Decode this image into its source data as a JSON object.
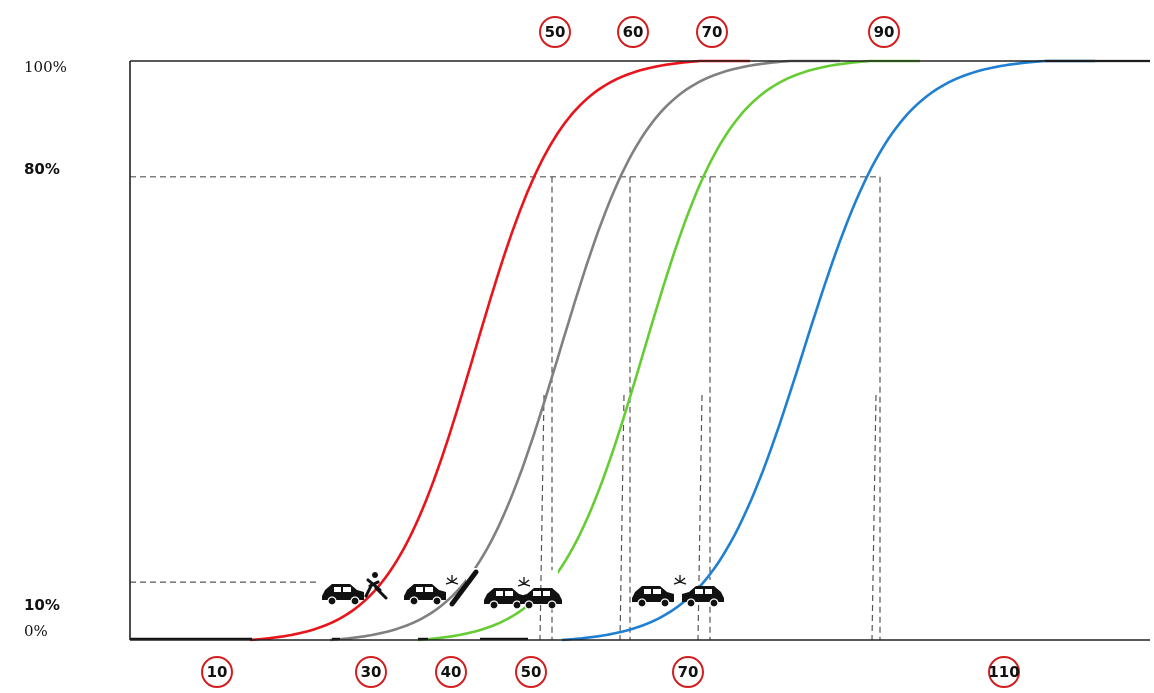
{
  "chart_data": {
    "type": "line",
    "title": "",
    "xlabel": "",
    "ylabel": "",
    "ylim": [
      0,
      100
    ],
    "y_tick_labels": [
      "100%",
      "80%",
      "10%",
      "0%"
    ],
    "top_sign_labels": [
      "50",
      "60",
      "70",
      "90"
    ],
    "bottom_sign_labels": [
      "10",
      "30",
      "40",
      "50",
      "70",
      "110"
    ],
    "series": [
      {
        "color": "#e8141b",
        "values": [
          0,
          2,
          10,
          50,
          80,
          98,
          100
        ]
      },
      {
        "color": "#808080",
        "values": [
          0,
          2,
          10,
          50,
          80,
          98,
          100
        ]
      },
      {
        "color": "#66cc33",
        "values": [
          0,
          2,
          10,
          50,
          80,
          98,
          100
        ]
      },
      {
        "color": "#1f7fd1",
        "values": [
          0,
          2,
          10,
          50,
          80,
          98,
          100
        ]
      }
    ],
    "guides": [
      "80%",
      "10%"
    ],
    "grid": false,
    "legend": "none",
    "icons": [
      "car-hits-pedestrian-icon",
      "car-hits-pole-icon",
      "car-collision-icon",
      "car-collision-icon"
    ]
  }
}
